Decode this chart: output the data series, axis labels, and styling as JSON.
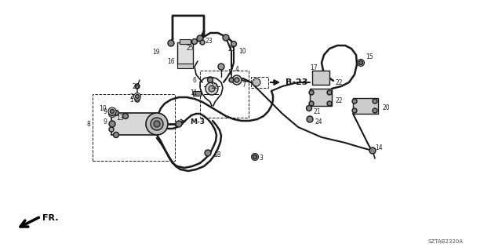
{
  "bg_color": "#ffffff",
  "dc": "#1a1a1a",
  "part_code": "SZTAB2320A",
  "b23_label": "B-23",
  "m3_label": "M-3",
  "fr_label": "FR."
}
